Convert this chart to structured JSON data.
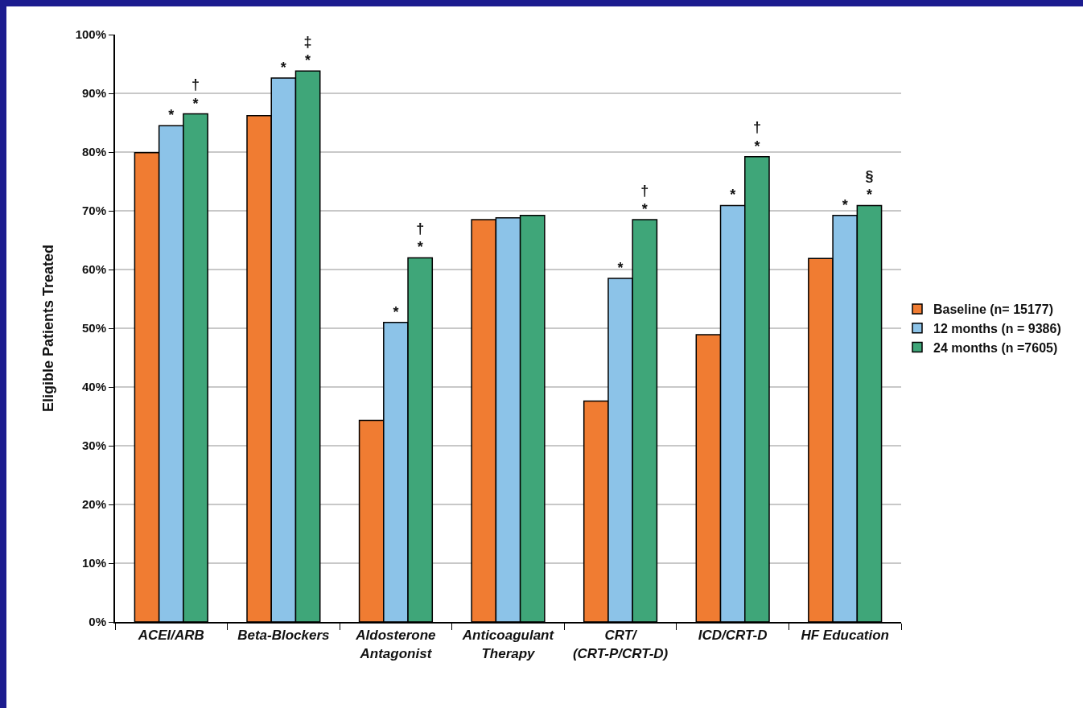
{
  "chart_data": {
    "type": "bar",
    "ylabel": "Eligible Patients Treated",
    "categories": [
      "ACEI/ARB",
      "Beta-Blockers",
      "Aldosterone Antagonist",
      "Anticoagulant Therapy",
      "CRT/ (CRT-P/CRT-D)",
      "ICD/CRT-D",
      "HF Education"
    ],
    "series": [
      {
        "name": "Baseline (n= 15177)",
        "color": "#f07c32",
        "values": [
          79.9,
          86.2,
          34.3,
          68.5,
          37.6,
          48.9,
          61.9
        ]
      },
      {
        "name": "12 months (n = 9386)",
        "color": "#8cc3e8",
        "values": [
          84.5,
          92.6,
          51.0,
          68.8,
          58.5,
          70.9,
          69.2
        ],
        "value_labels": [
          "*",
          "*",
          "*",
          null,
          "*",
          "*",
          "*"
        ]
      },
      {
        "name": "24 months (n =7605)",
        "color": "#3fa679",
        "values": [
          86.5,
          93.8,
          62.0,
          69.2,
          68.5,
          79.2,
          70.9
        ],
        "value_labels": [
          "†\n*",
          "‡\n*",
          "†\n*",
          null,
          "†\n*",
          "†\n*",
          "§\n*"
        ]
      }
    ],
    "ylim": [
      0,
      100
    ],
    "yticks": [
      {
        "value": 0,
        "label": "0%"
      },
      {
        "value": 10,
        "label": "10%"
      },
      {
        "value": 20,
        "label": "20%"
      },
      {
        "value": 30,
        "label": "30%"
      },
      {
        "value": 40,
        "label": "40%"
      },
      {
        "value": 50,
        "label": "50%"
      },
      {
        "value": 60,
        "label": "60%"
      },
      {
        "value": 70,
        "label": "70%"
      },
      {
        "value": 80,
        "label": "80%"
      },
      {
        "value": 90,
        "label": "90%"
      },
      {
        "value": 100,
        "label": "100%"
      }
    ],
    "grid": "y",
    "legend": "right"
  }
}
